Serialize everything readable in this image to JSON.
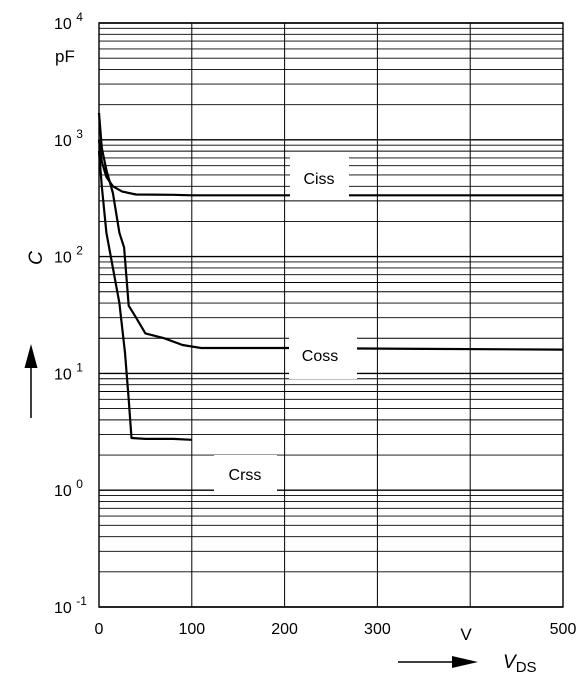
{
  "chart_data": {
    "type": "line",
    "y_scale": "log",
    "xlim": [
      0,
      500
    ],
    "ylim": [
      0.1,
      10000
    ],
    "x_ticks": [
      "0",
      "100",
      "200",
      "300",
      "500"
    ],
    "x_unit": "V",
    "y_ticks": [
      {
        "base": "10",
        "exp": "4"
      },
      {
        "base": "10",
        "exp": "3"
      },
      {
        "base": "10",
        "exp": "2"
      },
      {
        "base": "10",
        "exp": "1"
      },
      {
        "base": "10",
        "exp": "0"
      },
      {
        "base": "10",
        "exp": "-1"
      }
    ],
    "y_unit": "pF",
    "ylabel": "C",
    "xlabel": {
      "main": "V",
      "sub": "DS"
    },
    "grid": true,
    "series": [
      {
        "name": "Ciss",
        "points": [
          [
            0,
            1000
          ],
          [
            3,
            650
          ],
          [
            8,
            480
          ],
          [
            15,
            400
          ],
          [
            25,
            360
          ],
          [
            40,
            340
          ],
          [
            80,
            338
          ],
          [
            100,
            335
          ],
          [
            500,
            335
          ]
        ]
      },
      {
        "name": "Coss",
        "points": [
          [
            0,
            1700
          ],
          [
            3,
            850
          ],
          [
            8,
            550
          ],
          [
            15,
            350
          ],
          [
            22,
            160
          ],
          [
            27,
            120
          ],
          [
            32,
            38
          ],
          [
            40,
            30
          ],
          [
            50,
            22
          ],
          [
            70,
            20
          ],
          [
            90,
            17.5
          ],
          [
            110,
            16.5
          ],
          [
            200,
            16.5
          ],
          [
            350,
            16.2
          ],
          [
            500,
            16
          ]
        ]
      },
      {
        "name": "Crss",
        "points": [
          [
            0,
            800
          ],
          [
            3,
            400
          ],
          [
            8,
            160
          ],
          [
            15,
            80
          ],
          [
            22,
            40
          ],
          [
            28,
            15
          ],
          [
            32,
            6
          ],
          [
            35,
            2.8
          ],
          [
            50,
            2.75
          ],
          [
            80,
            2.75
          ],
          [
            100,
            2.7
          ]
        ]
      }
    ],
    "labels": [
      "Ciss",
      "Coss",
      "Crss"
    ]
  }
}
